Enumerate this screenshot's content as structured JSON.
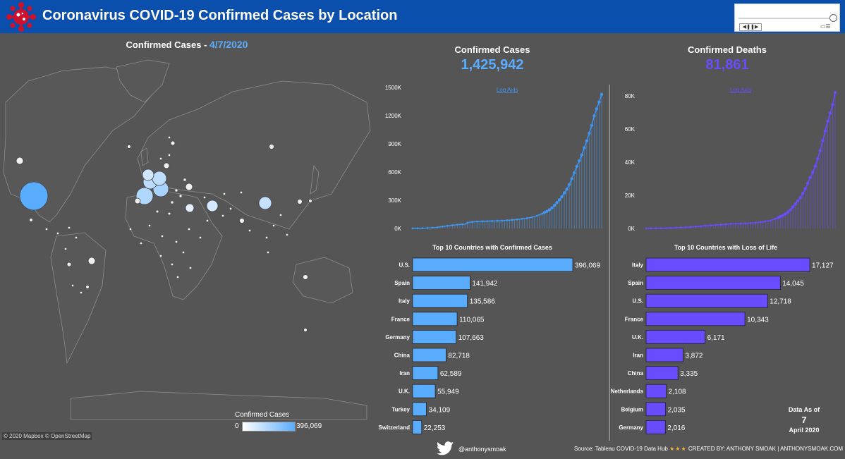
{
  "header": {
    "title": "Coronavirus COVID-19 Confirmed Cases by Location",
    "colors": {
      "bar": "#0b4fad",
      "logo": "#d0102a"
    }
  },
  "slider": {
    "prev_label": "◀",
    "pause_label": "❚❚",
    "next_label": "▶"
  },
  "map": {
    "title_prefix": "Confirmed Cases - ",
    "date": "4/7/2020",
    "credit": "© 2020 Mapbox © OpenStreetMap",
    "legend_title": "Confirmed Cases",
    "legend_min": "0",
    "legend_max": "396,069",
    "bubble_color": "#5aacff"
  },
  "kpis": {
    "cases_label": "Confirmed Cases",
    "cases_value": "1,425,942",
    "cases_color": "#5aacff",
    "deaths_label": "Confirmed Deaths",
    "deaths_value": "81,861",
    "deaths_color": "#6a4cff"
  },
  "chart_data": [
    {
      "type": "line",
      "title": "",
      "annotation": "Log Axis",
      "color": "#3f95f0",
      "ylim": [
        0,
        1500000
      ],
      "yticks": [
        0,
        300000,
        600000,
        900000,
        1200000,
        1500000
      ],
      "ytick_labels": [
        "0K",
        "300K",
        "600K",
        "900K",
        "1200K",
        "1500K"
      ],
      "grid": false,
      "y": [
        555,
        654,
        941,
        1434,
        2118,
        2927,
        5578,
        6166,
        8235,
        9925,
        12038,
        16787,
        19881,
        23892,
        27635,
        30817,
        34391,
        37120,
        40150,
        42762,
        44802,
        45221,
        60368,
        66885,
        69030,
        71224,
        73258,
        75136,
        75639,
        76197,
        76819,
        78572,
        78958,
        79561,
        80406,
        81388,
        82746,
        84112,
        86604,
        88585,
        90443,
        93016,
        95314,
        98425,
        102050,
        106099,
        109991,
        114381,
        118948,
        126214,
        134576,
        145483,
        156653,
        169593,
        182490,
        198238,
        218822,
        244933,
        275597,
        305036,
        337489,
        378287,
        418045,
        467653,
        529591,
        593291,
        660706,
        720117,
        782365,
        857487,
        932605,
        1013157,
        1095917,
        1197405,
        1272115,
        1345101,
        1425942
      ]
    },
    {
      "type": "line",
      "title": "",
      "annotation": "Log Axis",
      "color": "#6a4cff",
      "ylim": [
        0,
        85000
      ],
      "yticks": [
        0,
        20000,
        40000,
        60000,
        80000
      ],
      "ytick_labels": [
        "0K",
        "20K",
        "40K",
        "60K",
        "80K"
      ],
      "grid": false,
      "y": [
        17,
        18,
        26,
        42,
        56,
        82,
        131,
        133,
        171,
        213,
        259,
        362,
        426,
        492,
        564,
        634,
        719,
        806,
        906,
        1013,
        1113,
        1118,
        1371,
        1523,
        1666,
        1770,
        1868,
        2007,
        2122,
        2247,
        2251,
        2458,
        2469,
        2629,
        2708,
        2770,
        2814,
        2872,
        2941,
        2996,
        3085,
        3160,
        3254,
        3348,
        3460,
        3558,
        3802,
        3988,
        4262,
        4615,
        4720,
        5404,
        5819,
        6440,
        7126,
        7905,
        8733,
        9867,
        11299,
        12973,
        14651,
        16505,
        18625,
        21181,
        23970,
        27198,
        30652,
        33925,
        37582,
        42107,
        46809,
        52983,
        58787,
        64606,
        69374,
        74565,
        81861
      ]
    },
    {
      "type": "bar",
      "title": "Top 10 Countries with Confirmed Cases",
      "color": "#5aacff",
      "categories": [
        "U.S.",
        "Spain",
        "Italy",
        "France",
        "Germany",
        "China",
        "Iran",
        "U.K.",
        "Turkey",
        "Switzerland"
      ],
      "values": [
        396069,
        141942,
        135586,
        110065,
        107663,
        82718,
        62589,
        55949,
        34109,
        22253
      ],
      "labels": [
        "396,069",
        "141,942",
        "135,586",
        "110,065",
        "107,663",
        "82,718",
        "62,589",
        "55,949",
        "34,109",
        "22,253"
      ]
    },
    {
      "type": "bar",
      "title": "Top 10 Countries with Loss of Life",
      "color": "#6a4cff",
      "categories": [
        "Italy",
        "Spain",
        "U.S.",
        "France",
        "U.K.",
        "Iran",
        "China",
        "Netherlands",
        "Belgium",
        "Germany"
      ],
      "values": [
        17127,
        14045,
        12718,
        10343,
        6171,
        3872,
        3335,
        2108,
        2035,
        2016
      ],
      "labels": [
        "17,127",
        "14,045",
        "12,718",
        "10,343",
        "6,171",
        "3,872",
        "3,335",
        "2,108",
        "2,035",
        "2,016"
      ]
    }
  ],
  "asof": {
    "line1": "Data As of",
    "day": "7",
    "line3": "April 2020"
  },
  "footer": {
    "handle": "@anthonysmoak",
    "source": "Source: Tableau COVID-19 Data Hub",
    "stars": "★★★",
    "credit": "CREATED BY: ANTHONY SMOAK | ANTHONYSMOAK.COM"
  }
}
